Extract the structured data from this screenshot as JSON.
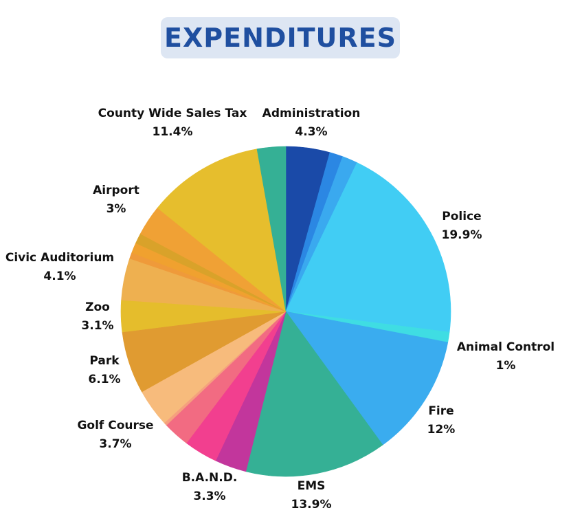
{
  "title": "EXPENDITURES",
  "chart_data": {
    "type": "pie",
    "title": "EXPENDITURES",
    "slices": [
      {
        "name": "Administration",
        "value": 4.3,
        "label_pct": "4.3%",
        "labeled": true,
        "color": "#1a4aa8"
      },
      {
        "name": "",
        "value": 1.3,
        "labeled": false,
        "color": "#2b87e3"
      },
      {
        "name": "",
        "value": 1.5,
        "labeled": false,
        "color": "#3aa9ef"
      },
      {
        "name": "Police",
        "value": 19.9,
        "label_pct": "19.9%",
        "labeled": true,
        "color": "#41cdf4"
      },
      {
        "name": "Animal Control",
        "value": 1.0,
        "label_pct": "1%",
        "labeled": true,
        "color": "#3fdde3"
      },
      {
        "name": "Fire",
        "value": 12,
        "label_pct": "12%",
        "labeled": true,
        "color": "#3aacef"
      },
      {
        "name": "EMS",
        "value": 13.9,
        "label_pct": "13.9%",
        "labeled": true,
        "color": "#35b095"
      },
      {
        "name": "",
        "value": 3.1,
        "labeled": false,
        "color": "#c2369c"
      },
      {
        "name": "B.A.N.D.",
        "value": 3.3,
        "label_pct": "3.3%",
        "labeled": true,
        "color": "#f23f8f"
      },
      {
        "name": "",
        "value": 2.6,
        "labeled": false,
        "color": "#f26b82"
      },
      {
        "name": "",
        "value": 0.3,
        "labeled": false,
        "color": "#f5a07e"
      },
      {
        "name": "Golf Course",
        "value": 3.7,
        "label_pct": "3.7%",
        "labeled": true,
        "color": "#f7bb7c"
      },
      {
        "name": "Park",
        "value": 6.1,
        "label_pct": "6.1%",
        "labeled": true,
        "color": "#e09b31"
      },
      {
        "name": "Zoo",
        "value": 3.1,
        "label_pct": "3.1%",
        "labeled": true,
        "color": "#e5bd2c"
      },
      {
        "name": "Civic Auditorium",
        "value": 4.1,
        "label_pct": "4.1%",
        "labeled": true,
        "color": "#eeb050"
      },
      {
        "name": "",
        "value": 0.6,
        "labeled": false,
        "color": "#ef9a3a"
      },
      {
        "name": "",
        "value": 1.0,
        "labeled": false,
        "color": "#f0a12f"
      },
      {
        "name": "",
        "value": 1.0,
        "labeled": false,
        "color": "#d9a22a"
      },
      {
        "name": "Airport",
        "value": 3,
        "label_pct": "3%",
        "labeled": true,
        "color": "#f0a135"
      },
      {
        "name": "County Wide Sales Tax",
        "value": 11.4,
        "label_pct": "11.4%",
        "labeled": true,
        "color": "#e6be2d"
      },
      {
        "name": "",
        "value": 2.8,
        "labeled": false,
        "color": "#35b095"
      }
    ],
    "legend": "none"
  }
}
